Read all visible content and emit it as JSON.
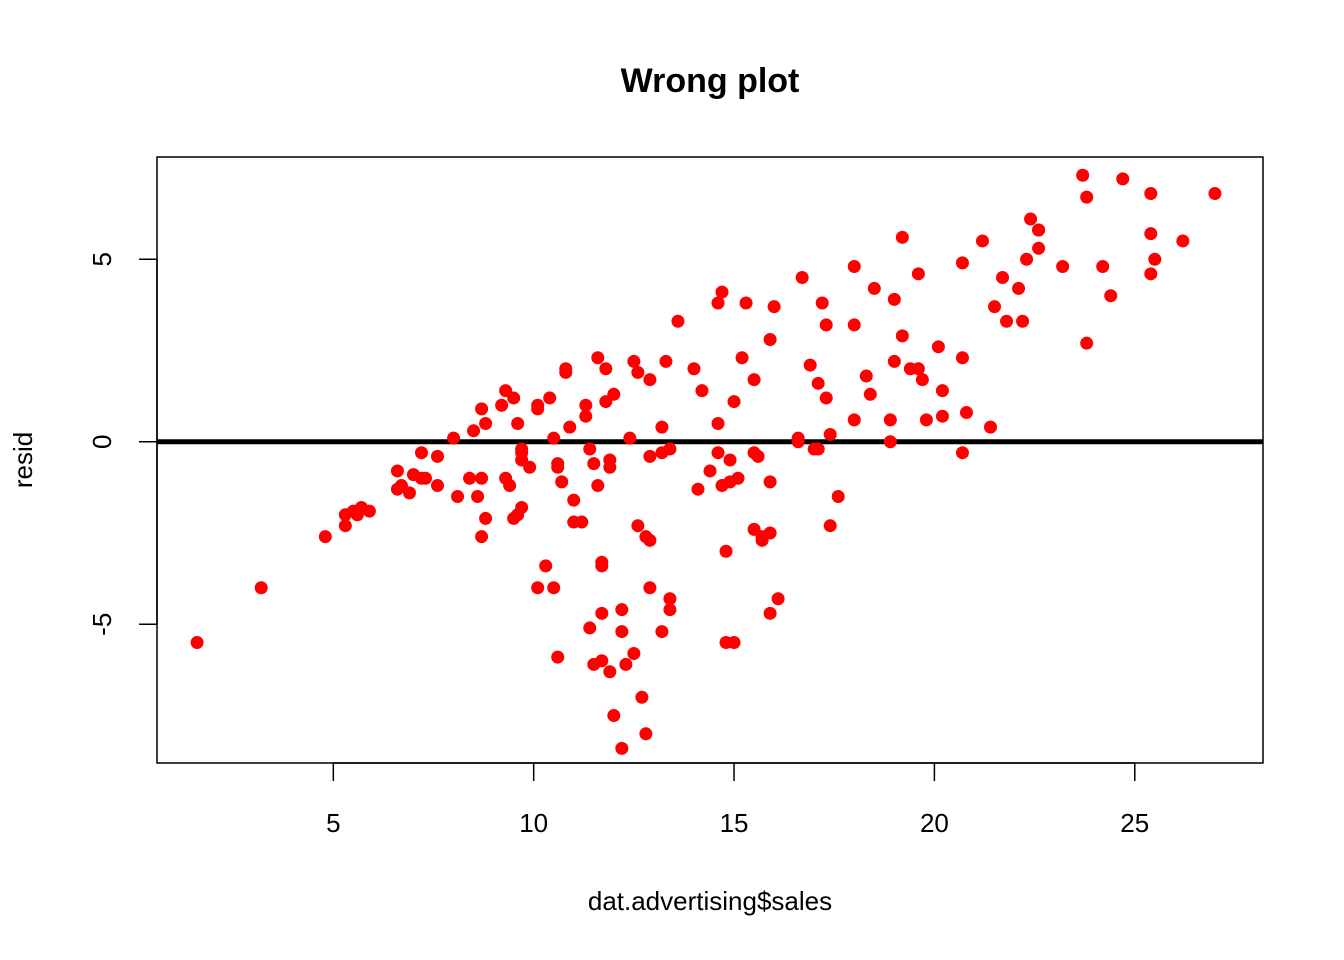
{
  "chart_data": {
    "type": "scatter",
    "title": "Wrong plot",
    "xlabel": "dat.advertising$sales",
    "ylabel": "resid",
    "xlim": [
      0.6,
      28.2
    ],
    "ylim": [
      -8.8,
      7.8
    ],
    "xticks": [
      5,
      10,
      15,
      20,
      25
    ],
    "yticks": [
      -5,
      0,
      5
    ],
    "point_color": "#ff0000",
    "hline": {
      "y": 0,
      "color": "#000000"
    },
    "grid": false,
    "series": [
      {
        "x": [
          1.6,
          3.2,
          4.8,
          5.3,
          5.3,
          5.5,
          5.6,
          5.7,
          5.9,
          6.6,
          6.6,
          6.7,
          6.9,
          7.0,
          7.2,
          7.2,
          7.3,
          7.6,
          7.6,
          8.0,
          8.1,
          8.4,
          8.5,
          8.6,
          8.7,
          8.7,
          8.7,
          8.8,
          8.8,
          9.2,
          9.3,
          9.3,
          9.4,
          9.5,
          9.5,
          9.6,
          9.6,
          9.7,
          9.7,
          9.7,
          9.7,
          9.9,
          10.1,
          10.1,
          10.1,
          10.3,
          10.4,
          10.5,
          10.5,
          10.6,
          10.6,
          10.6,
          10.7,
          10.8,
          10.8,
          10.9,
          11.0,
          11.0,
          11.2,
          11.3,
          11.3,
          11.4,
          11.4,
          11.5,
          11.5,
          11.6,
          11.6,
          11.7,
          11.7,
          11.7,
          11.7,
          11.8,
          11.8,
          11.9,
          11.9,
          11.9,
          12.0,
          12.0,
          12.2,
          12.2,
          12.2,
          12.3,
          12.4,
          12.5,
          12.5,
          12.6,
          12.6,
          12.7,
          12.8,
          12.8,
          12.9,
          12.9,
          12.9,
          12.9,
          13.2,
          13.2,
          13.2,
          13.3,
          13.4,
          13.4,
          13.4,
          13.6,
          14.0,
          14.1,
          14.2,
          14.4,
          14.6,
          14.6,
          14.6,
          14.7,
          14.7,
          14.8,
          14.8,
          14.9,
          14.9,
          15.0,
          15.0,
          15.1,
          15.2,
          15.3,
          15.5,
          15.5,
          15.5,
          15.6,
          15.7,
          15.7,
          15.9,
          15.9,
          15.9,
          15.9,
          16.0,
          16.1,
          16.6,
          16.6,
          16.7,
          16.9,
          17.0,
          17.1,
          17.1,
          17.2,
          17.3,
          17.3,
          17.4,
          17.4,
          17.6,
          18.0,
          18.0,
          18.0,
          18.3,
          18.4,
          18.5,
          18.9,
          18.9,
          19.0,
          19.0,
          19.2,
          19.2,
          19.4,
          19.6,
          19.6,
          19.7,
          19.8,
          20.1,
          20.2,
          20.2,
          20.7,
          20.7,
          20.7,
          20.8,
          21.2,
          21.4,
          21.5,
          21.7,
          21.8,
          22.1,
          22.2,
          22.3,
          22.4,
          22.6,
          22.6,
          22.6,
          23.2,
          23.7,
          23.8,
          23.8,
          24.2,
          24.4,
          24.7,
          25.4,
          25.4,
          25.4,
          25.5,
          26.2,
          27.0
        ],
        "y": [
          -5.5,
          -4.0,
          -2.6,
          -2.0,
          -2.3,
          -1.9,
          -2.0,
          -1.8,
          -1.9,
          -0.8,
          -1.3,
          -1.2,
          -1.4,
          -0.9,
          -0.3,
          -1.0,
          -1.0,
          -0.4,
          -1.2,
          0.1,
          -1.5,
          -1.0,
          0.3,
          -1.5,
          0.9,
          -1.0,
          -2.6,
          0.5,
          -2.1,
          1.0,
          1.4,
          -1.0,
          -1.2,
          1.2,
          -2.1,
          0.5,
          -2.0,
          -0.2,
          -0.5,
          -1.8,
          -0.3,
          -0.7,
          0.9,
          1.0,
          -4.0,
          -3.4,
          1.2,
          0.1,
          -4.0,
          -0.6,
          -0.7,
          -5.9,
          -1.1,
          1.9,
          2.0,
          0.4,
          -1.6,
          -2.2,
          -2.2,
          1.0,
          0.7,
          -0.2,
          -5.1,
          -0.6,
          -6.1,
          2.3,
          -1.2,
          -3.3,
          -3.4,
          -4.7,
          -6.0,
          2.0,
          1.1,
          -6.3,
          -0.5,
          -0.7,
          -7.5,
          1.3,
          -8.4,
          -4.6,
          -5.2,
          -6.1,
          0.1,
          2.2,
          -5.8,
          1.9,
          -2.3,
          -7.0,
          -2.6,
          -8.0,
          -2.7,
          1.7,
          -0.4,
          -4.0,
          0.4,
          -0.3,
          -5.2,
          2.2,
          -0.2,
          -4.3,
          -4.6,
          3.3,
          2.0,
          -1.3,
          1.4,
          -0.8,
          3.8,
          0.5,
          -0.3,
          4.1,
          -1.2,
          -3.0,
          -5.5,
          -1.1,
          -0.5,
          -5.5,
          1.1,
          -1.0,
          2.3,
          3.8,
          1.7,
          -2.4,
          -0.3,
          -0.4,
          -2.7,
          -2.6,
          2.8,
          -4.7,
          -1.1,
          -2.5,
          3.7,
          -4.3,
          0.1,
          0.0,
          4.5,
          2.1,
          -0.2,
          1.6,
          -0.2,
          3.8,
          3.2,
          1.2,
          0.2,
          -2.3,
          -1.5,
          4.8,
          3.2,
          0.6,
          1.8,
          1.3,
          4.2,
          0.6,
          0.0,
          2.2,
          3.9,
          5.6,
          2.9,
          2.0,
          2.0,
          4.6,
          1.7,
          0.6,
          2.6,
          0.7,
          1.4,
          4.9,
          2.3,
          -0.3,
          0.8,
          5.5,
          0.4,
          3.7,
          4.5,
          3.3,
          4.2,
          3.3,
          5.0,
          6.1,
          5.3,
          5.8,
          5.8,
          4.8,
          7.3,
          2.7,
          6.7,
          4.8,
          4.0,
          7.2,
          6.8,
          5.7,
          4.6,
          5.0,
          5.5,
          6.8
        ]
      }
    ]
  }
}
